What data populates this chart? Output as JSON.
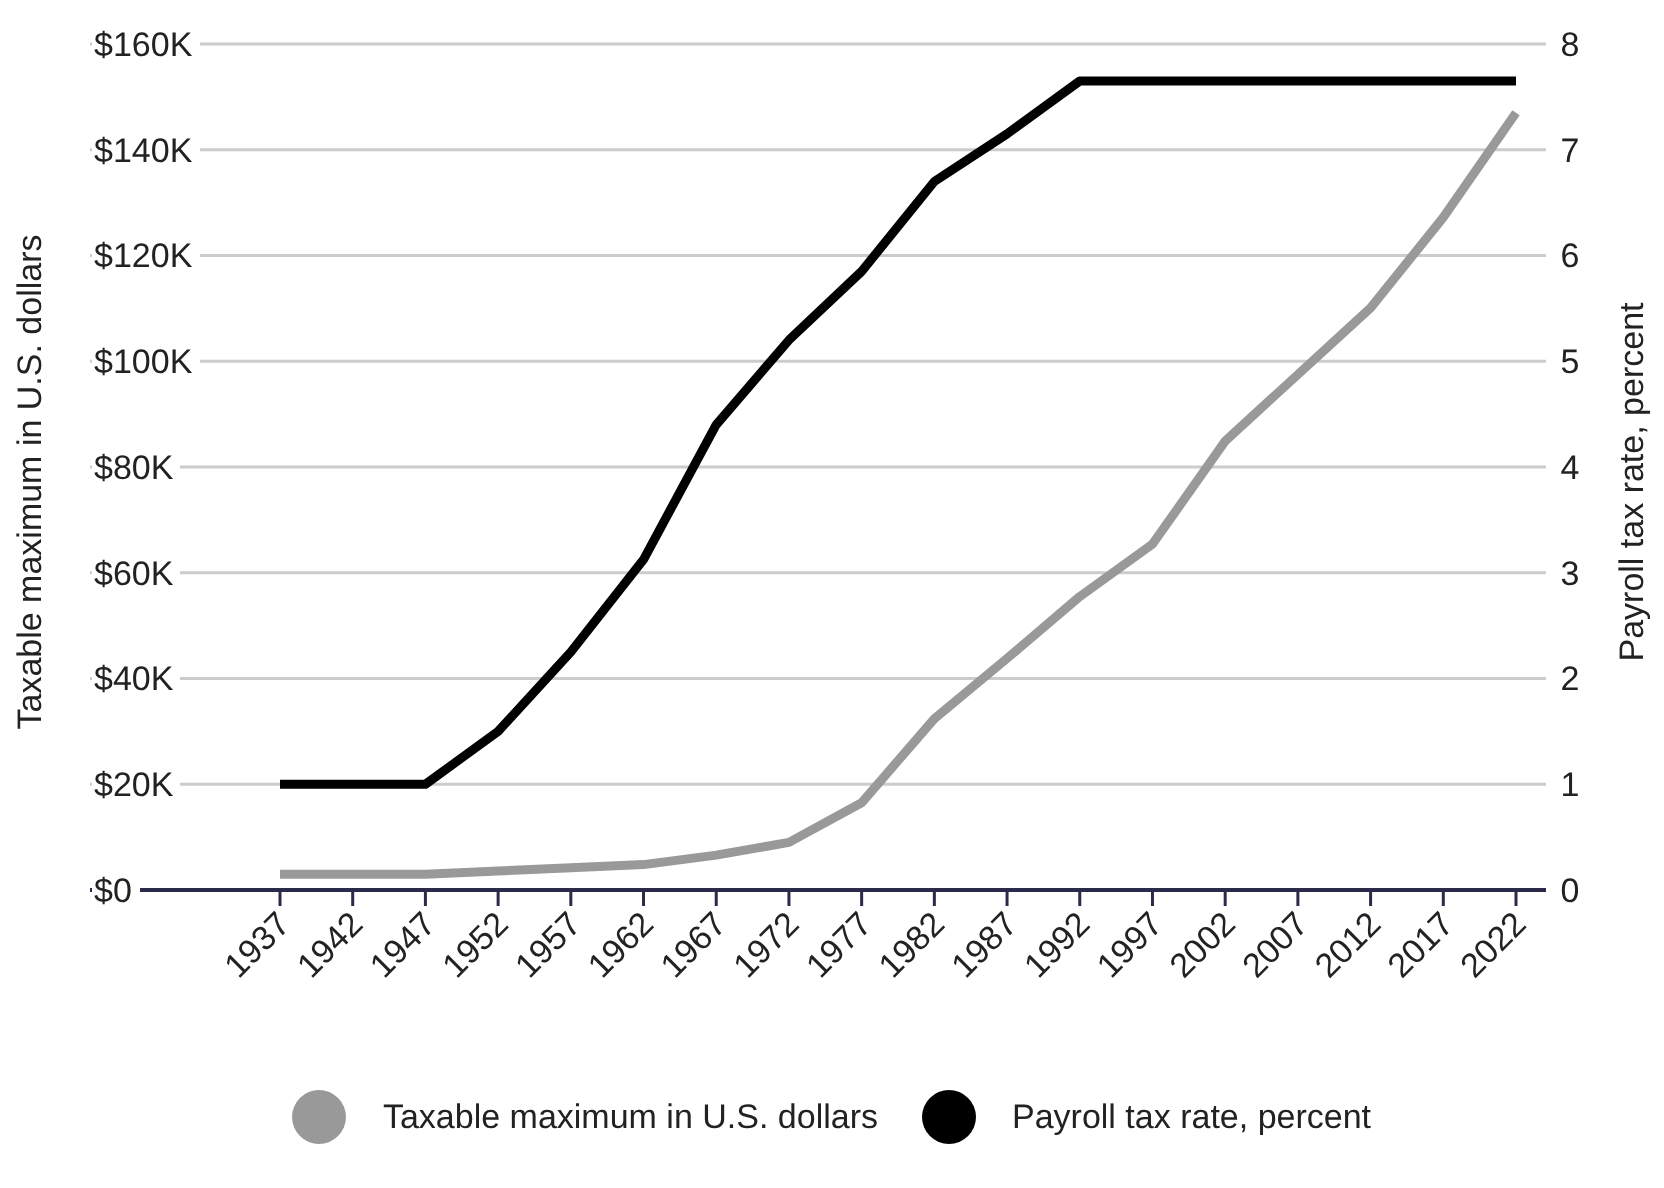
{
  "chart_data": {
    "type": "line",
    "ylabel": "Taxable maximum in U.S. dollars",
    "y2label": "Payroll tax rate, percent",
    "categories": [
      "1937",
      "1942",
      "1947",
      "1952",
      "1957",
      "1962",
      "1967",
      "1972",
      "1977",
      "1982",
      "1987",
      "1992",
      "1997",
      "2002",
      "2007",
      "2012",
      "2017",
      "2022"
    ],
    "series": [
      {
        "name": "Taxable maximum in U.S. dollars",
        "color": "#999999",
        "values": [
          3000,
          3000,
          3000,
          3600,
          4200,
          4800,
          6600,
          9000,
          16500,
          32400,
          43800,
          55500,
          65400,
          84900,
          97500,
          110100,
          127200,
          147000
        ]
      },
      {
        "name": "Payroll tax rate, percent",
        "color": "#000000",
        "axis": "y2",
        "values": [
          1,
          1,
          1,
          1.5,
          2.25,
          3.125,
          4.4,
          5.2,
          5.85,
          6.7,
          7.15,
          7.65,
          7.65,
          7.65,
          7.65,
          7.65,
          7.65,
          7.65
        ]
      }
    ],
    "ylim": [
      0,
      160000
    ],
    "yticks": [
      {
        "value": 0,
        "label": "$0"
      },
      {
        "value": 20000,
        "label": "$20K"
      },
      {
        "value": 40000,
        "label": "$40K"
      },
      {
        "value": 60000,
        "label": "$60K"
      },
      {
        "value": 80000,
        "label": "$80K"
      },
      {
        "value": 100000,
        "label": "$100K"
      },
      {
        "value": 120000,
        "label": "$120K"
      },
      {
        "value": 140000,
        "label": "$140K"
      },
      {
        "value": 160000,
        "label": "$160K"
      }
    ],
    "y2lim": [
      0,
      8
    ],
    "y2ticks": [
      0,
      1,
      2,
      3,
      4,
      5,
      6,
      7,
      8
    ],
    "grid": "y",
    "legend": "bottom",
    "marker": "none",
    "line_style": "solid"
  }
}
